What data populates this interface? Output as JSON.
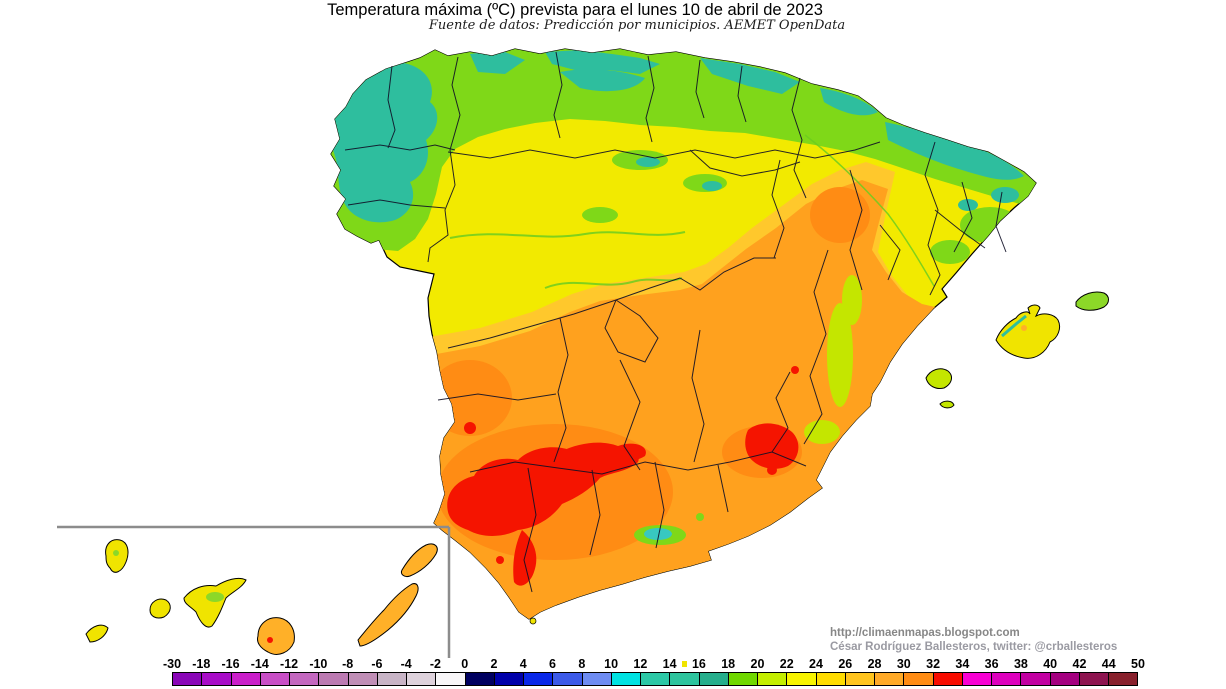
{
  "title": "Temperatura máxima (ºC) prevista para el lunes 10 de abril de 2023",
  "subtitle": "Fuente de datos: Predicción por municipios. AEMET OpenData",
  "credits": {
    "url": "http://climaenmapas.blogspot.com",
    "author": "César Rodríguez Ballesteros, twitter: @crballesteros"
  },
  "colorbar": {
    "boundary_labels": [
      "-30",
      "-18",
      "-16",
      "-14",
      "-12",
      "-10",
      "-8",
      "-6",
      "-4",
      "-2",
      "0",
      "2",
      "4",
      "6",
      "8",
      "10",
      "12",
      "14",
      "16",
      "18",
      "20",
      "22",
      "24",
      "26",
      "28",
      "30",
      "32",
      "34",
      "36",
      "38",
      "40",
      "42",
      "44",
      "50"
    ],
    "cell_colors": [
      "#8A06B8",
      "#A80CC8",
      "#CA1ECA",
      "#C84EC6",
      "#C468C0",
      "#BC7AB2",
      "#C08EB6",
      "#C8B4C6",
      "#DED2DC",
      "#F8F6F8",
      "#000060",
      "#0000AA",
      "#0A28E8",
      "#3C5AE8",
      "#6E8CF2",
      "#00E2E2",
      "#2CC8A6",
      "#2EC49E",
      "#26AE8C",
      "#70D800",
      "#C4EE00",
      "#F8F400",
      "#FFDC00",
      "#FFC41E",
      "#FFAA28",
      "#FF8C14",
      "#F80C00",
      "#F800D4",
      "#DE00BE",
      "#C200A2",
      "#A40080",
      "#8E1450",
      "#88202C"
    ],
    "artifact_dot_color": "#F0E400"
  },
  "map": {
    "palette": {
      "sea": "#FFFFFF",
      "coastline": "#000000",
      "border": "#101026",
      "teal": "#2EBE9E",
      "green": "#7FD818",
      "yellowGreen": "#C4E600",
      "yellow": "#F2EA00",
      "yellowOrange": "#FFC82C",
      "orange": "#FFA11E",
      "deepOrange": "#FF8C14",
      "red": "#F51400",
      "cyanSpot": "#38C8C0",
      "islandYellow": "#F0E400",
      "islandOrange": "#FFB028",
      "islandGreen": "#8CD828",
      "insetLine": "#8C8C8C",
      "riverGreen": "#6CCC20"
    }
  }
}
